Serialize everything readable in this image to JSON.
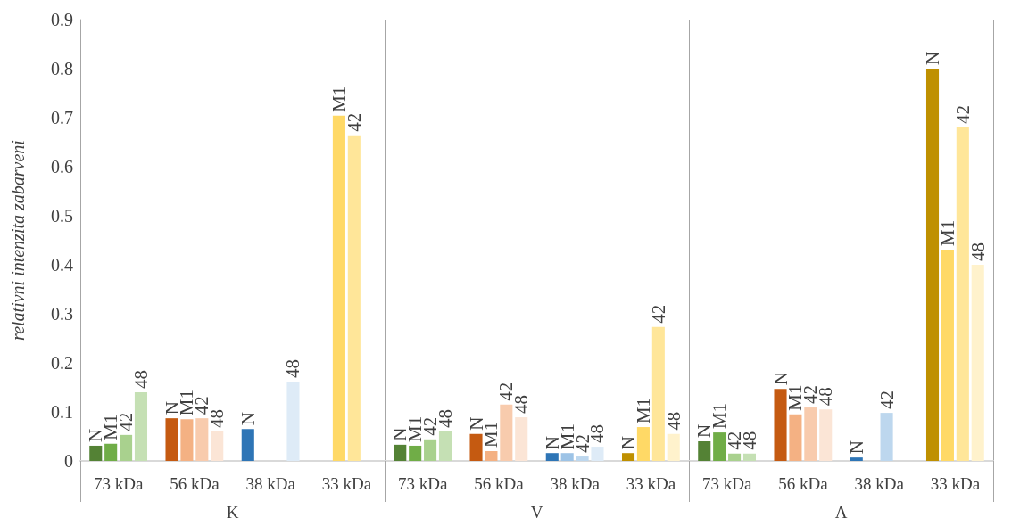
{
  "chart_data": {
    "type": "bar",
    "ylabel": "relativni intenzita zabarveni",
    "categories": [
      "73 kDa",
      "56 kDa",
      "38 kDa",
      "33 kDa",
      "73 kDa",
      "56 kDa",
      "38 kDa",
      "33 kDa",
      "73 kDa",
      "56 kDa",
      "38 kDa",
      "33 kDa"
    ],
    "annotations": [
      "K",
      "V",
      "A"
    ],
    "series": [
      {
        "name": "N",
        "values": [
          0.031,
          0.087,
          0.065,
          null,
          0.033,
          0.055,
          0.016,
          0.016,
          0.04,
          0.147,
          0.007,
          0.8
        ],
        "colors": [
          "#548235",
          "#c55a11",
          "#2e75b6",
          "#bf9000",
          "#548235",
          "#c55a11",
          "#2e75b6",
          "#bf9000",
          "#548235",
          "#c55a11",
          "#2e75b6",
          "#bf9000"
        ]
      },
      {
        "name": "M1",
        "values": [
          0.035,
          0.085,
          null,
          0.704,
          0.031,
          0.02,
          0.016,
          0.069,
          0.058,
          0.095,
          null,
          0.431
        ],
        "colors": [
          "#70ad47",
          "#f4b183",
          "#9dc3e6",
          "#ffd966",
          "#70ad47",
          "#f4b183",
          "#9dc3e6",
          "#ffd966",
          "#70ad47",
          "#f4b183",
          "#9dc3e6",
          "#ffd966"
        ]
      },
      {
        "name": "42",
        "values": [
          0.053,
          0.087,
          null,
          0.664,
          0.044,
          0.115,
          0.009,
          0.273,
          0.015,
          0.109,
          0.098,
          0.68
        ],
        "colors": [
          "#a9d18e",
          "#f8cbad",
          "#bdd7ee",
          "#ffe699",
          "#a9d18e",
          "#f8cbad",
          "#bdd7ee",
          "#ffe699",
          "#a9d18e",
          "#f8cbad",
          "#bdd7ee",
          "#ffe699"
        ]
      },
      {
        "name": "48",
        "values": [
          0.14,
          0.06,
          0.162,
          null,
          0.06,
          0.089,
          0.029,
          0.055,
          0.015,
          0.105,
          null,
          0.4
        ],
        "colors": [
          "#c5e0b4",
          "#fbe5d6",
          "#deebf7",
          "#fff2cc",
          "#c5e0b4",
          "#fbe5d6",
          "#deebf7",
          "#fff2cc",
          "#c5e0b4",
          "#fbe5d6",
          "#deebf7",
          "#fff2cc"
        ]
      }
    ],
    "ylim": [
      0,
      0.9
    ],
    "yticks": [
      0,
      0.1,
      0.2,
      0.3,
      0.4,
      0.5,
      0.6,
      0.7,
      0.8,
      0.9
    ],
    "grid": false
  }
}
